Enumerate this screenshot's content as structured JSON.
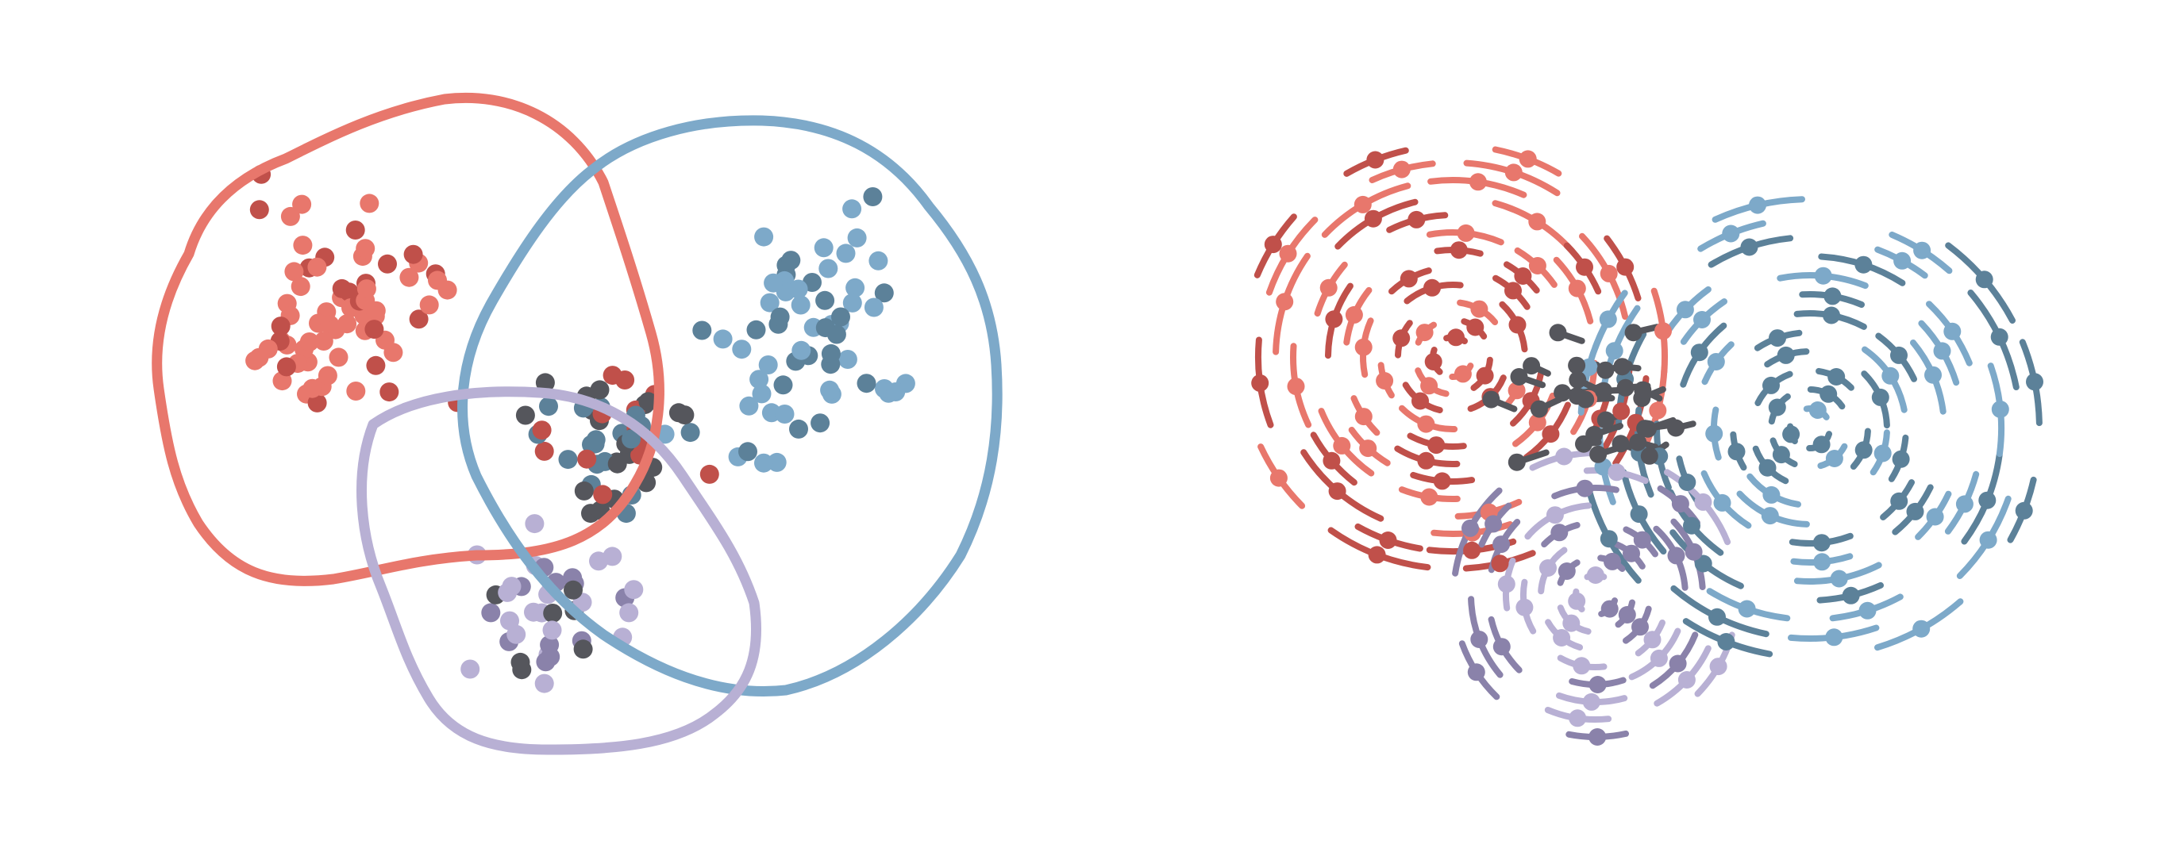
{
  "colors": {
    "red": "#e8776c",
    "darkred": "#c0504a",
    "blue": "#7da9c9",
    "darkblue": "#5c8199",
    "lilac": "#b8b0d4",
    "purple": "#8a82aa",
    "gray": "#55565c",
    "background": "#ffffff"
  },
  "panels": [
    {
      "id": "point-cloud-panel"
    },
    {
      "id": "ring-field-panel"
    }
  ],
  "clusters": [
    {
      "key": "red",
      "color_key": "red"
    },
    {
      "key": "blue",
      "color_key": "blue"
    },
    {
      "key": "lilac",
      "color_key": "lilac"
    }
  ]
}
